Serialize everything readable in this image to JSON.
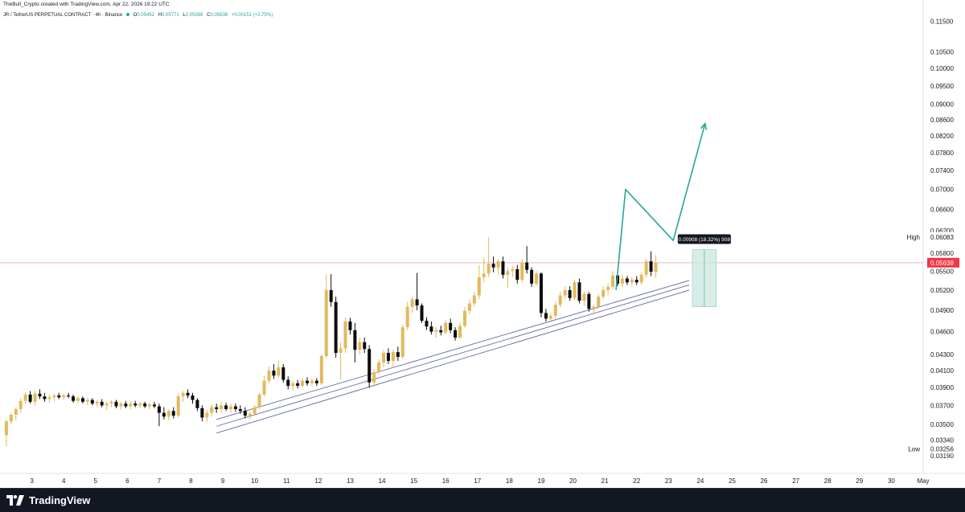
{
  "header": {
    "credit": "TheBull_Crypto created with TradingView.com, Apr 22, 2026 19:22 UTC"
  },
  "symbol": {
    "name": "JR / TetherUS PERPETUAL CONTRACT · 4h · Binance",
    "open_label": "O",
    "open": "0.05492",
    "high_label": "H",
    "high": "0.05771",
    "low_label": "L",
    "low": "0.05388",
    "close_label": "C",
    "close": "0.05638",
    "change": "+0.00151 (+2.75%)"
  },
  "measure_label": "0.00908 (18.32%) 908",
  "footer": {
    "brand": "TradingView"
  },
  "colors": {
    "up": "#e2b95c",
    "down": "#0c0c0c",
    "arrow": "#26a69a",
    "channel": "#5d6aa6",
    "measure_fill": "#cde9e1",
    "price_badge": "#f23645"
  },
  "chart_data": {
    "type": "candlestick",
    "y_scale": "log",
    "y_ticks": [
      "0.11500",
      "0.10500",
      "0.10000",
      "0.09500",
      "0.09000",
      "0.08600",
      "0.08200",
      "0.07800",
      "0.07400",
      "0.07000",
      "0.06600",
      "0.06200",
      "0.05800",
      "0.05500",
      "0.05200",
      "0.04900",
      "0.04600",
      "0.04300",
      "0.04100",
      "0.03900",
      "0.03700",
      "0.03500",
      "0.03340",
      "0.03190"
    ],
    "x_ticks": [
      "3",
      "4",
      "5",
      "6",
      "7",
      "8",
      "9",
      "10",
      "11",
      "12",
      "13",
      "14",
      "15",
      "16",
      "17",
      "18",
      "19",
      "20",
      "21",
      "22",
      "23",
      "24",
      "25",
      "26",
      "27",
      "28",
      "29",
      "30",
      "May"
    ],
    "x_domain": [
      2.0,
      31.0
    ],
    "y_range": [
      0.031,
      0.117
    ],
    "high_label": "High",
    "high_value": "0.06083",
    "low_label": "Low",
    "low_value": "0.03256",
    "last_price": "0.05638",
    "candles": [
      {
        "t": 2.2,
        "o": 0.0339,
        "h": 0.0355,
        "l": 0.0328,
        "c": 0.0353
      },
      {
        "t": 2.35,
        "o": 0.0353,
        "h": 0.0362,
        "l": 0.035,
        "c": 0.036
      },
      {
        "t": 2.5,
        "o": 0.036,
        "h": 0.0368,
        "l": 0.0354,
        "c": 0.0366
      },
      {
        "t": 2.65,
        "o": 0.0366,
        "h": 0.0378,
        "l": 0.0362,
        "c": 0.0375
      },
      {
        "t": 2.8,
        "o": 0.0375,
        "h": 0.0385,
        "l": 0.0372,
        "c": 0.0382
      },
      {
        "t": 2.95,
        "o": 0.0382,
        "h": 0.0386,
        "l": 0.0372,
        "c": 0.0374
      },
      {
        "t": 3.1,
        "o": 0.0374,
        "h": 0.0386,
        "l": 0.037,
        "c": 0.0383
      },
      {
        "t": 3.25,
        "o": 0.0383,
        "h": 0.0388,
        "l": 0.0377,
        "c": 0.038
      },
      {
        "t": 3.4,
        "o": 0.038,
        "h": 0.0384,
        "l": 0.0374,
        "c": 0.0377
      },
      {
        "t": 3.55,
        "o": 0.0377,
        "h": 0.0382,
        "l": 0.0373,
        "c": 0.0379
      },
      {
        "t": 3.7,
        "o": 0.0379,
        "h": 0.0383,
        "l": 0.0375,
        "c": 0.0381
      },
      {
        "t": 3.85,
        "o": 0.0381,
        "h": 0.0384,
        "l": 0.0377,
        "c": 0.0379
      },
      {
        "t": 4.0,
        "o": 0.0379,
        "h": 0.0383,
        "l": 0.0376,
        "c": 0.0381
      },
      {
        "t": 4.15,
        "o": 0.0381,
        "h": 0.0384,
        "l": 0.0378,
        "c": 0.038
      },
      {
        "t": 4.3,
        "o": 0.038,
        "h": 0.0382,
        "l": 0.0373,
        "c": 0.0375
      },
      {
        "t": 4.45,
        "o": 0.0375,
        "h": 0.038,
        "l": 0.0372,
        "c": 0.0378
      },
      {
        "t": 4.6,
        "o": 0.0378,
        "h": 0.038,
        "l": 0.0372,
        "c": 0.0374
      },
      {
        "t": 4.75,
        "o": 0.0374,
        "h": 0.0378,
        "l": 0.037,
        "c": 0.0376
      },
      {
        "t": 4.9,
        "o": 0.0376,
        "h": 0.0378,
        "l": 0.037,
        "c": 0.0372
      },
      {
        "t": 5.05,
        "o": 0.0372,
        "h": 0.0376,
        "l": 0.0368,
        "c": 0.0374
      },
      {
        "t": 5.2,
        "o": 0.0374,
        "h": 0.0377,
        "l": 0.0368,
        "c": 0.037
      },
      {
        "t": 5.35,
        "o": 0.037,
        "h": 0.0374,
        "l": 0.0365,
        "c": 0.0372
      },
      {
        "t": 5.5,
        "o": 0.0372,
        "h": 0.0376,
        "l": 0.0368,
        "c": 0.0374
      },
      {
        "t": 5.65,
        "o": 0.0374,
        "h": 0.0376,
        "l": 0.0367,
        "c": 0.0369
      },
      {
        "t": 5.8,
        "o": 0.0369,
        "h": 0.0374,
        "l": 0.0366,
        "c": 0.0372
      },
      {
        "t": 5.95,
        "o": 0.0372,
        "h": 0.0375,
        "l": 0.0367,
        "c": 0.0369
      },
      {
        "t": 6.1,
        "o": 0.0369,
        "h": 0.0374,
        "l": 0.0366,
        "c": 0.0372
      },
      {
        "t": 6.25,
        "o": 0.0372,
        "h": 0.0375,
        "l": 0.0368,
        "c": 0.037
      },
      {
        "t": 6.4,
        "o": 0.037,
        "h": 0.0374,
        "l": 0.0367,
        "c": 0.0372
      },
      {
        "t": 6.55,
        "o": 0.0372,
        "h": 0.0374,
        "l": 0.0367,
        "c": 0.0369
      },
      {
        "t": 6.7,
        "o": 0.0369,
        "h": 0.0373,
        "l": 0.0366,
        "c": 0.0371
      },
      {
        "t": 6.85,
        "o": 0.0371,
        "h": 0.0374,
        "l": 0.0367,
        "c": 0.0369
      },
      {
        "t": 7.0,
        "o": 0.0369,
        "h": 0.0372,
        "l": 0.0348,
        "c": 0.0362
      },
      {
        "t": 7.15,
        "o": 0.0362,
        "h": 0.0368,
        "l": 0.0355,
        "c": 0.0358
      },
      {
        "t": 7.3,
        "o": 0.0358,
        "h": 0.0366,
        "l": 0.0354,
        "c": 0.0364
      },
      {
        "t": 7.45,
        "o": 0.0364,
        "h": 0.0368,
        "l": 0.0356,
        "c": 0.0359
      },
      {
        "t": 7.6,
        "o": 0.0359,
        "h": 0.0384,
        "l": 0.0357,
        "c": 0.038
      },
      {
        "t": 7.75,
        "o": 0.038,
        "h": 0.0386,
        "l": 0.0374,
        "c": 0.0384
      },
      {
        "t": 7.9,
        "o": 0.0384,
        "h": 0.0388,
        "l": 0.0378,
        "c": 0.0381
      },
      {
        "t": 8.05,
        "o": 0.0381,
        "h": 0.0384,
        "l": 0.0372,
        "c": 0.0376
      },
      {
        "t": 8.2,
        "o": 0.0376,
        "h": 0.0378,
        "l": 0.0364,
        "c": 0.0367
      },
      {
        "t": 8.35,
        "o": 0.0367,
        "h": 0.037,
        "l": 0.0353,
        "c": 0.0357
      },
      {
        "t": 8.5,
        "o": 0.0357,
        "h": 0.0365,
        "l": 0.0352,
        "c": 0.0362
      },
      {
        "t": 8.65,
        "o": 0.0362,
        "h": 0.0371,
        "l": 0.0358,
        "c": 0.0368
      },
      {
        "t": 8.8,
        "o": 0.0368,
        "h": 0.0372,
        "l": 0.0362,
        "c": 0.0366
      },
      {
        "t": 8.95,
        "o": 0.0366,
        "h": 0.0374,
        "l": 0.0362,
        "c": 0.037
      },
      {
        "t": 9.1,
        "o": 0.037,
        "h": 0.0373,
        "l": 0.0364,
        "c": 0.0366
      },
      {
        "t": 9.25,
        "o": 0.0366,
        "h": 0.0372,
        "l": 0.0362,
        "c": 0.0369
      },
      {
        "t": 9.4,
        "o": 0.0369,
        "h": 0.0372,
        "l": 0.0363,
        "c": 0.0366
      },
      {
        "t": 9.55,
        "o": 0.0366,
        "h": 0.037,
        "l": 0.0361,
        "c": 0.0364
      },
      {
        "t": 9.7,
        "o": 0.0364,
        "h": 0.0368,
        "l": 0.0356,
        "c": 0.0359
      },
      {
        "t": 9.85,
        "o": 0.0359,
        "h": 0.0363,
        "l": 0.0355,
        "c": 0.0361
      },
      {
        "t": 10.0,
        "o": 0.0361,
        "h": 0.037,
        "l": 0.0359,
        "c": 0.0368
      },
      {
        "t": 10.15,
        "o": 0.0368,
        "h": 0.0384,
        "l": 0.0366,
        "c": 0.0382
      },
      {
        "t": 10.3,
        "o": 0.0382,
        "h": 0.0404,
        "l": 0.038,
        "c": 0.0398
      },
      {
        "t": 10.45,
        "o": 0.0398,
        "h": 0.0415,
        "l": 0.0395,
        "c": 0.041
      },
      {
        "t": 10.6,
        "o": 0.041,
        "h": 0.0418,
        "l": 0.04,
        "c": 0.0404
      },
      {
        "t": 10.75,
        "o": 0.0404,
        "h": 0.0422,
        "l": 0.0401,
        "c": 0.0414
      },
      {
        "t": 10.9,
        "o": 0.0414,
        "h": 0.0418,
        "l": 0.0396,
        "c": 0.0399
      },
      {
        "t": 11.05,
        "o": 0.0399,
        "h": 0.0403,
        "l": 0.0388,
        "c": 0.0392
      },
      {
        "t": 11.2,
        "o": 0.0392,
        "h": 0.0398,
        "l": 0.0387,
        "c": 0.0395
      },
      {
        "t": 11.35,
        "o": 0.0395,
        "h": 0.0399,
        "l": 0.0389,
        "c": 0.0392
      },
      {
        "t": 11.5,
        "o": 0.0392,
        "h": 0.0401,
        "l": 0.039,
        "c": 0.0398
      },
      {
        "t": 11.65,
        "o": 0.0398,
        "h": 0.0402,
        "l": 0.0392,
        "c": 0.0395
      },
      {
        "t": 11.8,
        "o": 0.0395,
        "h": 0.0401,
        "l": 0.0392,
        "c": 0.0398
      },
      {
        "t": 11.95,
        "o": 0.0398,
        "h": 0.0401,
        "l": 0.0392,
        "c": 0.0395
      },
      {
        "t": 12.1,
        "o": 0.0395,
        "h": 0.043,
        "l": 0.0393,
        "c": 0.0428
      },
      {
        "t": 12.25,
        "o": 0.0428,
        "h": 0.0545,
        "l": 0.0425,
        "c": 0.052
      },
      {
        "t": 12.4,
        "o": 0.052,
        "h": 0.0545,
        "l": 0.0495,
        "c": 0.0502
      },
      {
        "t": 12.55,
        "o": 0.0502,
        "h": 0.051,
        "l": 0.0426,
        "c": 0.0432
      },
      {
        "t": 12.7,
        "o": 0.0432,
        "h": 0.0446,
        "l": 0.04,
        "c": 0.0438
      },
      {
        "t": 12.85,
        "o": 0.0438,
        "h": 0.048,
        "l": 0.0432,
        "c": 0.0474
      },
      {
        "t": 13.0,
        "o": 0.0474,
        "h": 0.0479,
        "l": 0.0456,
        "c": 0.0462
      },
      {
        "t": 13.15,
        "o": 0.0462,
        "h": 0.0472,
        "l": 0.042,
        "c": 0.0436
      },
      {
        "t": 13.3,
        "o": 0.0436,
        "h": 0.0452,
        "l": 0.043,
        "c": 0.0446
      },
      {
        "t": 13.45,
        "o": 0.0446,
        "h": 0.0452,
        "l": 0.0432,
        "c": 0.0437
      },
      {
        "t": 13.6,
        "o": 0.0437,
        "h": 0.0442,
        "l": 0.039,
        "c": 0.0396
      },
      {
        "t": 13.75,
        "o": 0.0396,
        "h": 0.0412,
        "l": 0.0391,
        "c": 0.0408
      },
      {
        "t": 13.9,
        "o": 0.0408,
        "h": 0.0424,
        "l": 0.0405,
        "c": 0.042
      },
      {
        "t": 14.05,
        "o": 0.042,
        "h": 0.0436,
        "l": 0.0414,
        "c": 0.0432
      },
      {
        "t": 14.2,
        "o": 0.0432,
        "h": 0.0438,
        "l": 0.0418,
        "c": 0.0422
      },
      {
        "t": 14.35,
        "o": 0.0422,
        "h": 0.0436,
        "l": 0.0414,
        "c": 0.0433
      },
      {
        "t": 14.5,
        "o": 0.0433,
        "h": 0.044,
        "l": 0.0422,
        "c": 0.0427
      },
      {
        "t": 14.65,
        "o": 0.0427,
        "h": 0.047,
        "l": 0.0424,
        "c": 0.0466
      },
      {
        "t": 14.8,
        "o": 0.0466,
        "h": 0.0502,
        "l": 0.0462,
        "c": 0.0495
      },
      {
        "t": 14.95,
        "o": 0.0495,
        "h": 0.051,
        "l": 0.0486,
        "c": 0.0506
      },
      {
        "t": 15.1,
        "o": 0.0506,
        "h": 0.0547,
        "l": 0.049,
        "c": 0.0497
      },
      {
        "t": 15.25,
        "o": 0.0497,
        "h": 0.05,
        "l": 0.0472,
        "c": 0.0475
      },
      {
        "t": 15.4,
        "o": 0.0475,
        "h": 0.048,
        "l": 0.0462,
        "c": 0.0467
      },
      {
        "t": 15.55,
        "o": 0.0467,
        "h": 0.0474,
        "l": 0.0456,
        "c": 0.046
      },
      {
        "t": 15.7,
        "o": 0.046,
        "h": 0.0466,
        "l": 0.0452,
        "c": 0.0462
      },
      {
        "t": 15.85,
        "o": 0.0462,
        "h": 0.0468,
        "l": 0.0455,
        "c": 0.0459
      },
      {
        "t": 16.0,
        "o": 0.0459,
        "h": 0.0476,
        "l": 0.0456,
        "c": 0.0472
      },
      {
        "t": 16.15,
        "o": 0.0472,
        "h": 0.0478,
        "l": 0.0458,
        "c": 0.0462
      },
      {
        "t": 16.3,
        "o": 0.0462,
        "h": 0.0466,
        "l": 0.0448,
        "c": 0.0452
      },
      {
        "t": 16.45,
        "o": 0.0452,
        "h": 0.0472,
        "l": 0.045,
        "c": 0.0468
      },
      {
        "t": 16.6,
        "o": 0.0468,
        "h": 0.0495,
        "l": 0.0465,
        "c": 0.0489
      },
      {
        "t": 16.75,
        "o": 0.0489,
        "h": 0.0505,
        "l": 0.0484,
        "c": 0.05
      },
      {
        "t": 16.9,
        "o": 0.05,
        "h": 0.0517,
        "l": 0.0495,
        "c": 0.0512
      },
      {
        "t": 17.05,
        "o": 0.0512,
        "h": 0.056,
        "l": 0.0506,
        "c": 0.054
      },
      {
        "t": 17.2,
        "o": 0.054,
        "h": 0.0572,
        "l": 0.0532,
        "c": 0.0546
      },
      {
        "t": 17.35,
        "o": 0.0546,
        "h": 0.0608,
        "l": 0.054,
        "c": 0.0562
      },
      {
        "t": 17.5,
        "o": 0.0562,
        "h": 0.0574,
        "l": 0.0548,
        "c": 0.0556
      },
      {
        "t": 17.65,
        "o": 0.0556,
        "h": 0.057,
        "l": 0.0544,
        "c": 0.0566
      },
      {
        "t": 17.8,
        "o": 0.0566,
        "h": 0.0574,
        "l": 0.0538,
        "c": 0.0544
      },
      {
        "t": 17.95,
        "o": 0.0544,
        "h": 0.0556,
        "l": 0.0524,
        "c": 0.055
      },
      {
        "t": 18.1,
        "o": 0.055,
        "h": 0.0558,
        "l": 0.054,
        "c": 0.0553
      },
      {
        "t": 18.25,
        "o": 0.0553,
        "h": 0.056,
        "l": 0.053,
        "c": 0.0536
      },
      {
        "t": 18.4,
        "o": 0.0536,
        "h": 0.057,
        "l": 0.0532,
        "c": 0.0564
      },
      {
        "t": 18.55,
        "o": 0.0564,
        "h": 0.0592,
        "l": 0.0546,
        "c": 0.0552
      },
      {
        "t": 18.7,
        "o": 0.0552,
        "h": 0.0556,
        "l": 0.0525,
        "c": 0.053
      },
      {
        "t": 18.85,
        "o": 0.053,
        "h": 0.055,
        "l": 0.0526,
        "c": 0.0546
      },
      {
        "t": 19.0,
        "o": 0.0546,
        "h": 0.0548,
        "l": 0.048,
        "c": 0.0486
      },
      {
        "t": 19.15,
        "o": 0.0486,
        "h": 0.0492,
        "l": 0.0474,
        "c": 0.0478
      },
      {
        "t": 19.3,
        "o": 0.0478,
        "h": 0.0486,
        "l": 0.0472,
        "c": 0.0482
      },
      {
        "t": 19.45,
        "o": 0.0482,
        "h": 0.0502,
        "l": 0.0478,
        "c": 0.0498
      },
      {
        "t": 19.6,
        "o": 0.0498,
        "h": 0.0518,
        "l": 0.0494,
        "c": 0.0512
      },
      {
        "t": 19.75,
        "o": 0.0512,
        "h": 0.0526,
        "l": 0.0506,
        "c": 0.052
      },
      {
        "t": 19.9,
        "o": 0.052,
        "h": 0.0526,
        "l": 0.0504,
        "c": 0.0508
      },
      {
        "t": 20.05,
        "o": 0.0508,
        "h": 0.0536,
        "l": 0.0504,
        "c": 0.0532
      },
      {
        "t": 20.2,
        "o": 0.0532,
        "h": 0.0538,
        "l": 0.05,
        "c": 0.0504
      },
      {
        "t": 20.35,
        "o": 0.0504,
        "h": 0.0518,
        "l": 0.0496,
        "c": 0.0514
      },
      {
        "t": 20.5,
        "o": 0.0514,
        "h": 0.0517,
        "l": 0.0488,
        "c": 0.0492
      },
      {
        "t": 20.65,
        "o": 0.0492,
        "h": 0.0498,
        "l": 0.0484,
        "c": 0.0495
      },
      {
        "t": 20.8,
        "o": 0.0495,
        "h": 0.0514,
        "l": 0.0493,
        "c": 0.051
      },
      {
        "t": 20.95,
        "o": 0.051,
        "h": 0.0526,
        "l": 0.0506,
        "c": 0.052
      },
      {
        "t": 21.1,
        "o": 0.052,
        "h": 0.053,
        "l": 0.0512,
        "c": 0.0525
      },
      {
        "t": 21.25,
        "o": 0.0525,
        "h": 0.055,
        "l": 0.052,
        "c": 0.0543
      },
      {
        "t": 21.4,
        "o": 0.0543,
        "h": 0.055,
        "l": 0.0526,
        "c": 0.053
      },
      {
        "t": 21.55,
        "o": 0.053,
        "h": 0.0544,
        "l": 0.0524,
        "c": 0.0538
      },
      {
        "t": 21.7,
        "o": 0.0538,
        "h": 0.0542,
        "l": 0.0528,
        "c": 0.0532
      },
      {
        "t": 21.85,
        "o": 0.0532,
        "h": 0.054,
        "l": 0.0526,
        "c": 0.0536
      },
      {
        "t": 22.0,
        "o": 0.0536,
        "h": 0.0542,
        "l": 0.0528,
        "c": 0.0532
      },
      {
        "t": 22.15,
        "o": 0.0532,
        "h": 0.0548,
        "l": 0.0528,
        "c": 0.0544
      },
      {
        "t": 22.3,
        "o": 0.0544,
        "h": 0.057,
        "l": 0.054,
        "c": 0.0566
      },
      {
        "t": 22.45,
        "o": 0.0566,
        "h": 0.0583,
        "l": 0.0542,
        "c": 0.0549
      },
      {
        "t": 22.6,
        "o": 0.0549,
        "h": 0.0577,
        "l": 0.0539,
        "c": 0.0564
      }
    ],
    "channel": [
      {
        "x1": 8.8,
        "y1": 0.0355,
        "x2": 23.65,
        "y2": 0.0535
      },
      {
        "x1": 8.8,
        "y1": 0.0348,
        "x2": 23.65,
        "y2": 0.0528
      },
      {
        "x1": 8.8,
        "y1": 0.0341,
        "x2": 23.65,
        "y2": 0.052
      }
    ],
    "projection_path": [
      {
        "t": 21.35,
        "v": 0.052
      },
      {
        "t": 21.65,
        "v": 0.07
      },
      {
        "t": 23.15,
        "v": 0.0602
      },
      {
        "t": 24.15,
        "v": 0.085
      }
    ],
    "measure": {
      "t1": 23.75,
      "t2": 24.5,
      "v_low": 0.0495,
      "v_high": 0.0586
    }
  }
}
